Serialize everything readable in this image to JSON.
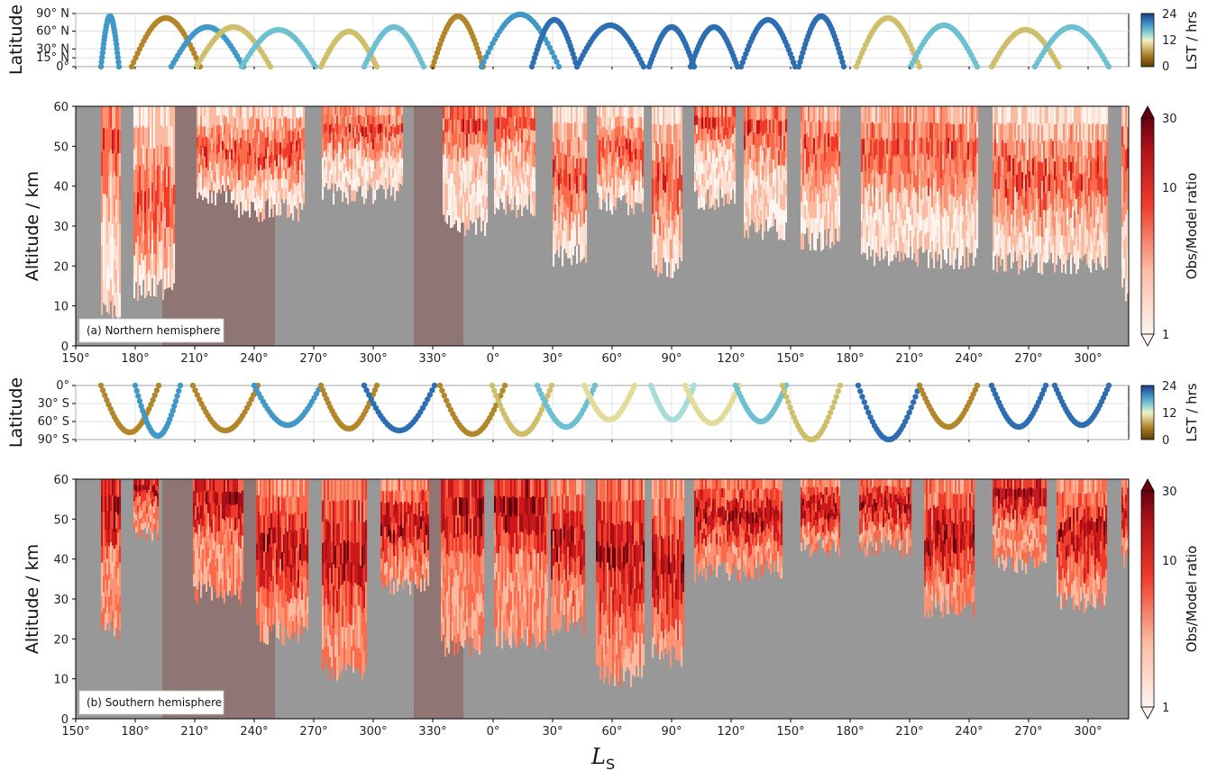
{
  "chart_data": [
    {
      "type": "scatter",
      "panel": "north-latitude",
      "ylabel": "Latitude",
      "y_ticks": [
        "0°",
        "15° N",
        "30° N",
        "60° N",
        "90° N"
      ],
      "y_tick_values": [
        0,
        15,
        30,
        60,
        90
      ],
      "ylim": [
        0,
        90
      ],
      "colorbar": {
        "label": "LST / hrs",
        "ticks": [
          "0",
          "12",
          "24"
        ],
        "range": [
          0,
          24
        ]
      },
      "grid": true
    },
    {
      "type": "heatmap",
      "panel": "north-altitude",
      "annotation": "(a) Northern hemisphere",
      "ylabel": "Altitude / km",
      "xlabel": "",
      "ylim": [
        0,
        60
      ],
      "y_ticks": [
        "0",
        "10",
        "20",
        "30",
        "40",
        "50",
        "60"
      ],
      "x_ticks": [
        "150°",
        "180°",
        "210°",
        "240°",
        "270°",
        "300°",
        "330°",
        "0°",
        "30°",
        "60°",
        "90°",
        "120°",
        "150°",
        "180°",
        "210°",
        "240°",
        "270°",
        "300°"
      ],
      "colorbar": {
        "label": "Obs/Model ratio",
        "ticks": [
          "1",
          "10",
          "30"
        ],
        "scale": "log",
        "range": [
          1,
          30
        ]
      }
    },
    {
      "type": "scatter",
      "panel": "south-latitude",
      "ylabel": "Latitude",
      "y_ticks": [
        "0°",
        "30° S",
        "60° S",
        "90° S"
      ],
      "y_tick_values": [
        0,
        -30,
        -60,
        -90
      ],
      "ylim": [
        -90,
        0
      ],
      "colorbar": {
        "label": "LST / hrs",
        "ticks": [
          "0",
          "12",
          "24"
        ],
        "range": [
          0,
          24
        ]
      },
      "grid": true
    },
    {
      "type": "heatmap",
      "panel": "south-altitude",
      "annotation": "(b) Southern hemisphere",
      "ylabel": "Altitude / km",
      "xlabel": "L",
      "xlabel_sub": "S",
      "ylim": [
        0,
        60
      ],
      "y_ticks": [
        "0",
        "10",
        "20",
        "30",
        "40",
        "50",
        "60"
      ],
      "x_ticks": [
        "150°",
        "180°",
        "210°",
        "240°",
        "270°",
        "300°",
        "330°",
        "0°",
        "30°",
        "60°",
        "90°",
        "120°",
        "150°",
        "180°",
        "210°",
        "240°",
        "270°",
        "300°"
      ],
      "colorbar": {
        "label": "Obs/Model ratio",
        "ticks": [
          "1",
          "10",
          "30"
        ],
        "scale": "log",
        "range": [
          1,
          30
        ]
      }
    }
  ]
}
